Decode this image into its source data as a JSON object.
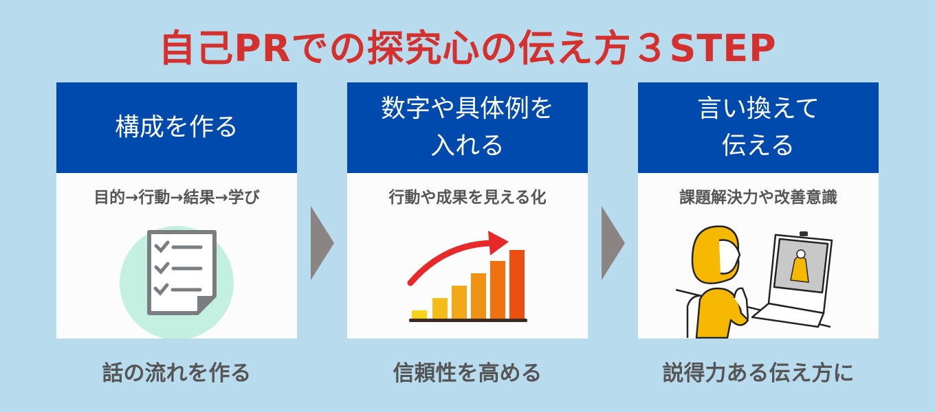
{
  "title": "自己PRでの探究心の伝え方３STEP",
  "colors": {
    "title": "#d3302e",
    "header": "#004aad",
    "background": "#b8dcee",
    "arrow": "#8a8582"
  },
  "steps": [
    {
      "heading": "構成を作る",
      "subheading": "目的→行動→結果→学び",
      "icon": "checklist-icon",
      "caption": "話の流れを作る"
    },
    {
      "heading": "数字や具体例を\n入れる",
      "subheading": "行動や成果を見える化",
      "icon": "growth-bar-chart-icon",
      "caption": "信頼性を高める"
    },
    {
      "heading": "言い換えて\n伝える",
      "subheading": "課題解決力や改善意識",
      "icon": "online-interview-icon",
      "caption": "説得力ある伝え方に"
    }
  ]
}
